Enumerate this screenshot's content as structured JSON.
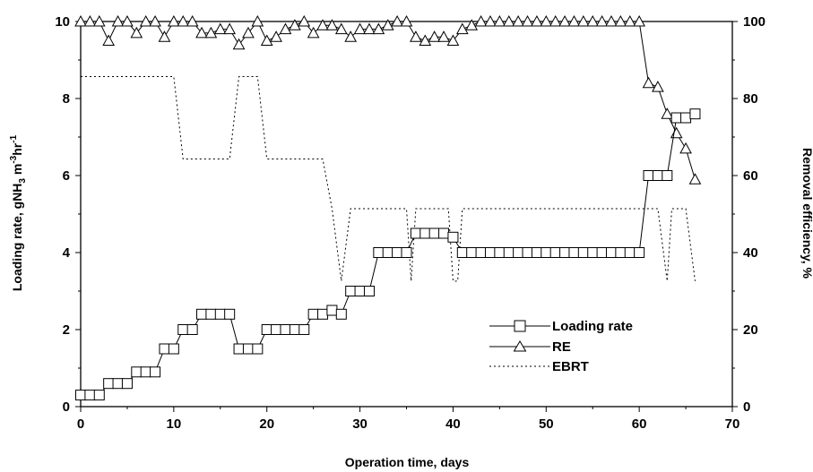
{
  "chart_data": {
    "type": "line",
    "xlabel": "Operation time, days",
    "ylabel_left": "Loading rate, gNH3 m-3hr-1",
    "ylabel_left_parts": {
      "base": "Loading rate, gNH",
      "sub": "3",
      "mid": " m",
      "sup1": "-3",
      "hr": "hr",
      "sup2": "-1"
    },
    "ylabel_right": "Removal efficiency, %",
    "xlim": [
      0,
      70
    ],
    "ylim_left": [
      0,
      10
    ],
    "ylim_right": [
      0,
      100
    ],
    "x_ticks": [
      "0",
      "10",
      "20",
      "30",
      "40",
      "50",
      "60",
      "70"
    ],
    "y_left_ticks": [
      "0",
      "2",
      "4",
      "6",
      "8",
      "10"
    ],
    "y_right_ticks": [
      "0",
      "20",
      "40",
      "60",
      "80",
      "100"
    ],
    "grid": false,
    "legend_position": "lower-right",
    "series": [
      {
        "name": "Loading rate",
        "axis": "left",
        "marker": "square",
        "line_style": "solid",
        "x": [
          0,
          1,
          2,
          3,
          4,
          5,
          6,
          7,
          8,
          9,
          10,
          11,
          12,
          13,
          14,
          15,
          16,
          17,
          18,
          19,
          20,
          21,
          22,
          23,
          24,
          25,
          26,
          27,
          28,
          29,
          30,
          31,
          32,
          33,
          34,
          35,
          36,
          37,
          38,
          39,
          40,
          41,
          42,
          43,
          44,
          45,
          46,
          47,
          48,
          49,
          50,
          51,
          52,
          53,
          54,
          55,
          56,
          57,
          58,
          59,
          60,
          61,
          62,
          63,
          64,
          65,
          66
        ],
        "values": [
          0.3,
          0.3,
          0.3,
          0.6,
          0.6,
          0.6,
          0.9,
          0.9,
          0.9,
          1.5,
          1.5,
          2.0,
          2.0,
          2.4,
          2.4,
          2.4,
          2.4,
          1.5,
          1.5,
          1.5,
          2.0,
          2.0,
          2.0,
          2.0,
          2.0,
          2.4,
          2.4,
          2.5,
          2.4,
          3.0,
          3.0,
          3.0,
          4.0,
          4.0,
          4.0,
          4.0,
          4.5,
          4.5,
          4.5,
          4.5,
          4.4,
          4.0,
          4.0,
          4.0,
          4.0,
          4.0,
          4.0,
          4.0,
          4.0,
          4.0,
          4.0,
          4.0,
          4.0,
          4.0,
          4.0,
          4.0,
          4.0,
          4.0,
          4.0,
          4.0,
          4.0,
          6.0,
          6.0,
          6.0,
          7.5,
          7.5,
          7.6
        ]
      },
      {
        "name": "RE",
        "axis": "right",
        "marker": "triangle",
        "line_style": "solid",
        "x": [
          0,
          1,
          2,
          3,
          4,
          5,
          6,
          7,
          8,
          9,
          10,
          11,
          12,
          13,
          14,
          15,
          16,
          17,
          18,
          19,
          20,
          21,
          22,
          23,
          24,
          25,
          26,
          27,
          28,
          29,
          30,
          31,
          32,
          33,
          34,
          35,
          36,
          37,
          38,
          39,
          40,
          41,
          42,
          43,
          44,
          45,
          46,
          47,
          48,
          49,
          50,
          51,
          52,
          53,
          54,
          55,
          56,
          57,
          58,
          59,
          60,
          61,
          62,
          63,
          64,
          65,
          66
        ],
        "values": [
          100,
          100,
          100,
          95,
          100,
          100,
          97,
          100,
          100,
          96,
          100,
          100,
          100,
          97,
          97,
          98,
          98,
          94,
          97,
          100,
          95,
          96,
          98,
          99,
          100,
          97,
          99,
          99,
          98,
          96,
          98,
          98,
          98,
          99,
          100,
          100,
          96,
          95,
          96,
          96,
          95,
          98,
          99,
          100,
          100,
          100,
          100,
          100,
          100,
          100,
          100,
          100,
          100,
          100,
          100,
          100,
          100,
          100,
          100,
          100,
          100,
          84,
          83,
          76,
          71,
          67,
          59
        ]
      },
      {
        "name": "EBRT",
        "axis": "right",
        "marker": "none",
        "line_style": "dotted",
        "x": [
          0,
          10,
          11,
          16,
          17,
          18,
          19,
          20,
          26,
          27,
          28,
          29,
          35,
          35.5,
          36,
          39.5,
          40,
          40.5,
          41,
          60,
          60.5,
          61.5,
          62,
          63,
          63.5,
          64,
          65,
          66
        ],
        "values": [
          85.7,
          85.7,
          64.3,
          64.3,
          85.7,
          85.7,
          85.7,
          64.3,
          64.3,
          51.4,
          32.6,
          51.4,
          51.4,
          32.6,
          51.4,
          51.4,
          32.6,
          32.6,
          51.4,
          51.4,
          51.4,
          51.4,
          51.4,
          32.6,
          51.4,
          51.4,
          51.4,
          32.6
        ]
      }
    ]
  }
}
